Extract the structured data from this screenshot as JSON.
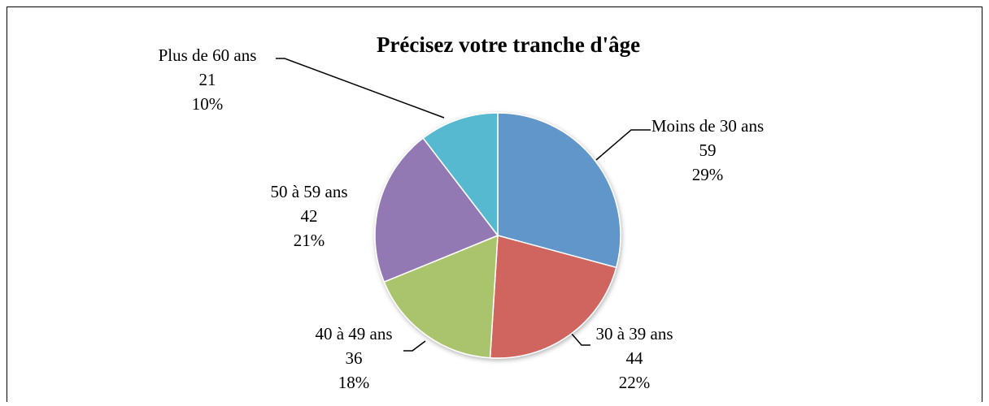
{
  "chart_data": {
    "type": "pie",
    "title": "Précisez votre tranche d'âge",
    "categories": [
      "Moins de 30 ans",
      "30 à 39 ans",
      "40 à 49 ans",
      "50 à 59 ans",
      "Plus de 60 ans"
    ],
    "values": [
      59,
      44,
      36,
      42,
      21
    ],
    "percent_labels": [
      "29%",
      "22%",
      "18%",
      "21%",
      "10%"
    ],
    "colors": [
      "#6096c9",
      "#d0655e",
      "#a9c46c",
      "#9279b3",
      "#56b9d0"
    ]
  }
}
